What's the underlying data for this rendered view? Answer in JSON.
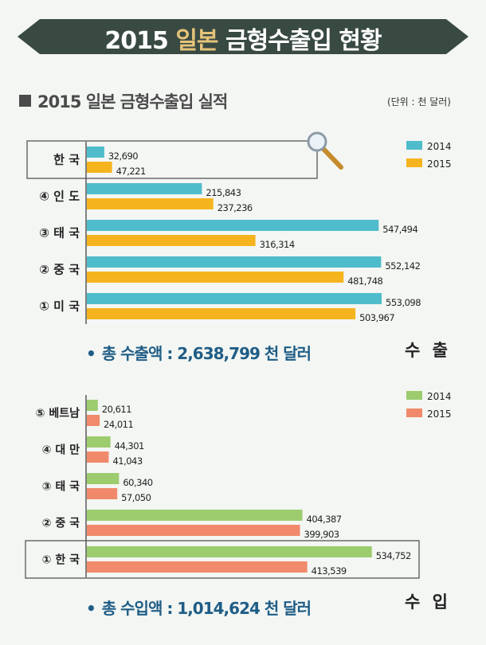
{
  "header": {
    "title_year": "2015",
    "title_country": "일본",
    "title_rest": "금형수출입 현황"
  },
  "section": {
    "heading": "2015 일본 금형수출입 실적",
    "unit": "(단위 : 천 달러)"
  },
  "chart_data": [
    {
      "type": "bar",
      "orientation": "horizontal",
      "categories": [
        "한 국",
        "④ 인 도",
        "③ 태 국",
        "② 중 국",
        "① 미 국"
      ],
      "series": [
        {
          "name": "2014",
          "values": [
            32690,
            215843,
            547494,
            552142,
            553098
          ],
          "color": "#4fbccb"
        },
        {
          "name": "2015",
          "values": [
            47221,
            237236,
            316314,
            481748,
            503967
          ],
          "color": "#f5b41e"
        }
      ],
      "data_labels": [
        [
          "32,690",
          "215,843",
          "547,494",
          "552,142",
          "553,098"
        ],
        [
          "47,221",
          "237,236",
          "316,314",
          "481,748",
          "503,967"
        ]
      ],
      "highlight_category": "한 국",
      "legend_position": "top-right",
      "corner_label": "수 출",
      "total_label": "총 수출액 : ",
      "total_value": "2,638,799 천 달러"
    },
    {
      "type": "bar",
      "orientation": "horizontal",
      "categories": [
        "⑤ 베트남",
        "④ 대 만",
        "③ 태 국",
        "② 중 국",
        "① 한 국"
      ],
      "series": [
        {
          "name": "2014",
          "values": [
            20611,
            44301,
            60340,
            404387,
            534752
          ],
          "color": "#9ccc6e"
        },
        {
          "name": "2015",
          "values": [
            24011,
            41043,
            57050,
            399903,
            413539
          ],
          "color": "#f08a6b"
        }
      ],
      "data_labels": [
        [
          "20,611",
          "44,301",
          "60,340",
          "404,387",
          "534,752"
        ],
        [
          "24,011",
          "41,043",
          "57,050",
          "399,903",
          "413,539"
        ]
      ],
      "highlight_category": "① 한 국",
      "legend_position": "top-right",
      "corner_label": "수 입",
      "total_label": "총 수입액 : ",
      "total_value": "1,014,624 천 달러"
    }
  ],
  "colors": {
    "banner": "#394a42",
    "accent": "#e5c37a",
    "total_text": "#1f5d86",
    "axis": "#333333"
  }
}
